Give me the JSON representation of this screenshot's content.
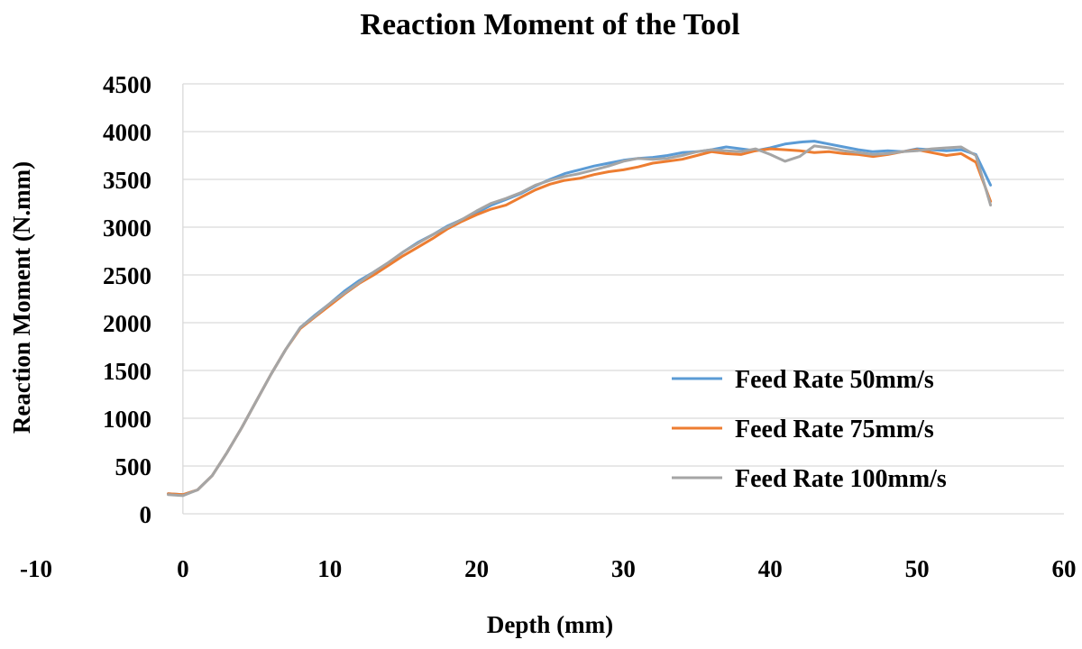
{
  "chart_data": {
    "type": "line",
    "title": "Reaction Moment of the Tool",
    "xlabel": "Depth (mm)",
    "ylabel": "Reaction Moment (N.mm)",
    "xlim": [
      -10,
      60
    ],
    "ylim": [
      0,
      4500
    ],
    "x_ticks": [
      -10,
      0,
      10,
      20,
      30,
      40,
      50,
      60
    ],
    "y_ticks": [
      0,
      500,
      1000,
      1500,
      2000,
      2500,
      3000,
      3500,
      4000,
      4500
    ],
    "grid": "horizontal",
    "legend_position": "bottom-right",
    "series": [
      {
        "name": "Feed Rate 50mm/s",
        "color": "#5b9bd5",
        "points": [
          [
            -1,
            210
          ],
          [
            0,
            200
          ],
          [
            1,
            250
          ],
          [
            2,
            400
          ],
          [
            3,
            640
          ],
          [
            4,
            900
          ],
          [
            5,
            1180
          ],
          [
            6,
            1460
          ],
          [
            7,
            1720
          ],
          [
            8,
            1950
          ],
          [
            9,
            2080
          ],
          [
            10,
            2200
          ],
          [
            11,
            2330
          ],
          [
            12,
            2440
          ],
          [
            13,
            2530
          ],
          [
            14,
            2630
          ],
          [
            15,
            2740
          ],
          [
            16,
            2840
          ],
          [
            17,
            2920
          ],
          [
            18,
            3010
          ],
          [
            19,
            3080
          ],
          [
            20,
            3150
          ],
          [
            21,
            3230
          ],
          [
            22,
            3290
          ],
          [
            23,
            3350
          ],
          [
            24,
            3430
          ],
          [
            25,
            3500
          ],
          [
            26,
            3560
          ],
          [
            27,
            3600
          ],
          [
            28,
            3640
          ],
          [
            29,
            3670
          ],
          [
            30,
            3700
          ],
          [
            31,
            3720
          ],
          [
            32,
            3730
          ],
          [
            33,
            3750
          ],
          [
            34,
            3780
          ],
          [
            35,
            3790
          ],
          [
            36,
            3810
          ],
          [
            37,
            3840
          ],
          [
            38,
            3820
          ],
          [
            39,
            3800
          ],
          [
            40,
            3830
          ],
          [
            41,
            3870
          ],
          [
            42,
            3890
          ],
          [
            43,
            3900
          ],
          [
            44,
            3870
          ],
          [
            45,
            3840
          ],
          [
            46,
            3810
          ],
          [
            47,
            3790
          ],
          [
            48,
            3800
          ],
          [
            49,
            3790
          ],
          [
            50,
            3820
          ],
          [
            51,
            3810
          ],
          [
            52,
            3800
          ],
          [
            53,
            3810
          ],
          [
            54,
            3760
          ],
          [
            55,
            3440
          ]
        ]
      },
      {
        "name": "Feed Rate 75mm/s",
        "color": "#ed7d31",
        "points": [
          [
            -1,
            210
          ],
          [
            0,
            200
          ],
          [
            1,
            250
          ],
          [
            2,
            400
          ],
          [
            3,
            640
          ],
          [
            4,
            900
          ],
          [
            5,
            1180
          ],
          [
            6,
            1460
          ],
          [
            7,
            1720
          ],
          [
            8,
            1940
          ],
          [
            9,
            2060
          ],
          [
            10,
            2180
          ],
          [
            11,
            2300
          ],
          [
            12,
            2410
          ],
          [
            13,
            2500
          ],
          [
            14,
            2600
          ],
          [
            15,
            2700
          ],
          [
            16,
            2790
          ],
          [
            17,
            2880
          ],
          [
            18,
            2980
          ],
          [
            19,
            3060
          ],
          [
            20,
            3130
          ],
          [
            21,
            3190
          ],
          [
            22,
            3230
          ],
          [
            23,
            3310
          ],
          [
            24,
            3390
          ],
          [
            25,
            3450
          ],
          [
            26,
            3490
          ],
          [
            27,
            3510
          ],
          [
            28,
            3550
          ],
          [
            29,
            3580
          ],
          [
            30,
            3600
          ],
          [
            31,
            3630
          ],
          [
            32,
            3670
          ],
          [
            33,
            3690
          ],
          [
            34,
            3710
          ],
          [
            35,
            3750
          ],
          [
            36,
            3790
          ],
          [
            37,
            3770
          ],
          [
            38,
            3760
          ],
          [
            39,
            3800
          ],
          [
            40,
            3820
          ],
          [
            41,
            3810
          ],
          [
            42,
            3800
          ],
          [
            43,
            3780
          ],
          [
            44,
            3790
          ],
          [
            45,
            3770
          ],
          [
            46,
            3760
          ],
          [
            47,
            3740
          ],
          [
            48,
            3760
          ],
          [
            49,
            3790
          ],
          [
            50,
            3810
          ],
          [
            51,
            3780
          ],
          [
            52,
            3750
          ],
          [
            53,
            3770
          ],
          [
            54,
            3680
          ],
          [
            55,
            3270
          ]
        ]
      },
      {
        "name": "Feed Rate 100mm/s",
        "color": "#a5a5a5",
        "points": [
          [
            -1,
            200
          ],
          [
            0,
            190
          ],
          [
            1,
            250
          ],
          [
            2,
            400
          ],
          [
            3,
            640
          ],
          [
            4,
            900
          ],
          [
            5,
            1180
          ],
          [
            6,
            1460
          ],
          [
            7,
            1720
          ],
          [
            8,
            1950
          ],
          [
            9,
            2070
          ],
          [
            10,
            2200
          ],
          [
            11,
            2310
          ],
          [
            12,
            2420
          ],
          [
            13,
            2530
          ],
          [
            14,
            2630
          ],
          [
            15,
            2740
          ],
          [
            16,
            2830
          ],
          [
            17,
            2920
          ],
          [
            18,
            3000
          ],
          [
            19,
            3080
          ],
          [
            20,
            3170
          ],
          [
            21,
            3250
          ],
          [
            22,
            3300
          ],
          [
            23,
            3360
          ],
          [
            24,
            3440
          ],
          [
            25,
            3490
          ],
          [
            26,
            3530
          ],
          [
            27,
            3560
          ],
          [
            28,
            3600
          ],
          [
            29,
            3640
          ],
          [
            30,
            3690
          ],
          [
            31,
            3720
          ],
          [
            32,
            3710
          ],
          [
            33,
            3720
          ],
          [
            34,
            3750
          ],
          [
            35,
            3790
          ],
          [
            36,
            3810
          ],
          [
            37,
            3800
          ],
          [
            38,
            3790
          ],
          [
            39,
            3820
          ],
          [
            40,
            3760
          ],
          [
            41,
            3690
          ],
          [
            42,
            3740
          ],
          [
            43,
            3850
          ],
          [
            44,
            3830
          ],
          [
            45,
            3800
          ],
          [
            46,
            3780
          ],
          [
            47,
            3760
          ],
          [
            48,
            3770
          ],
          [
            49,
            3790
          ],
          [
            50,
            3800
          ],
          [
            51,
            3820
          ],
          [
            52,
            3830
          ],
          [
            53,
            3840
          ],
          [
            54,
            3750
          ],
          [
            55,
            3230
          ]
        ]
      }
    ]
  }
}
